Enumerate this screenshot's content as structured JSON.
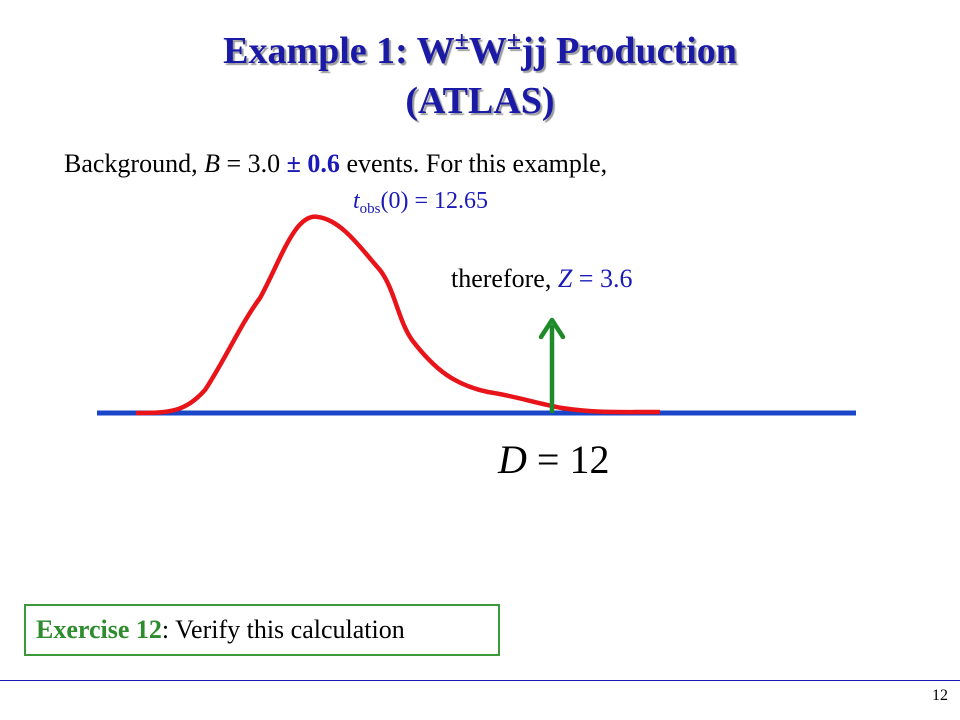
{
  "title": {
    "part1": "Example 1: W",
    "sup1": "±",
    "part2": "W",
    "sup2": "±",
    "part3": "jj Production",
    "line2": "(ATLAS)"
  },
  "background_text": {
    "prefix": "Background, ",
    "var": "B",
    "eq": " = 3.0 ",
    "err": "± 0.6",
    "suffix": " events.  For this example,"
  },
  "tobs": {
    "var": "t",
    "sub": "obs",
    "rest": "(0) = 12.65"
  },
  "therefore": {
    "prefix": "therefore, ",
    "var": "Z",
    "value": " = 3.6"
  },
  "observed": {
    "var": "D",
    "rest": " = 12"
  },
  "exercise": {
    "label": "Exercise 12",
    "text": ": Verify this calculation"
  },
  "page_number": "12",
  "colors": {
    "title": "#1a1aa6",
    "curve": "#e8141a",
    "axis": "#1a46c8",
    "arrow": "#1f8a2a",
    "exercise_border": "#3a9a3a"
  }
}
